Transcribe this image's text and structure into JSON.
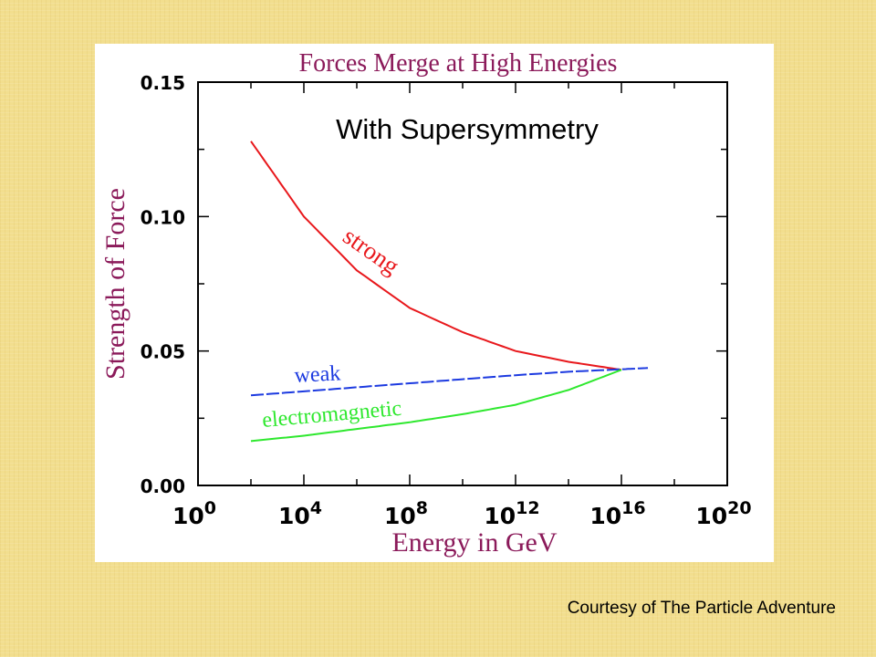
{
  "credit": "Courtesy of The Particle Adventure",
  "chart_data": {
    "type": "line",
    "title": "Forces Merge at High Energies",
    "subtitle": "With Supersymmetry",
    "xlabel": "Energy in GeV",
    "ylabel": "Strength of Force",
    "x_scale": "log",
    "x_ticks": [
      {
        "base": "10",
        "exp": "0"
      },
      {
        "base": "10",
        "exp": "4"
      },
      {
        "base": "10",
        "exp": "8"
      },
      {
        "base": "10",
        "exp": "12"
      },
      {
        "base": "10",
        "exp": "16"
      },
      {
        "base": "10",
        "exp": "20"
      }
    ],
    "y_ticks": [
      "0.00",
      "0.05",
      "0.10",
      "0.15"
    ],
    "xlim": [
      1,
      1e+20
    ],
    "ylim": [
      0,
      0.15
    ],
    "grid": false,
    "colors": {
      "title": "#8b1a5a",
      "axis_label": "#8b1a5a",
      "strong": "#e8181c",
      "weak": "#1c3ae0",
      "electromagnetic": "#2ee82e"
    },
    "series": [
      {
        "name": "strong",
        "x": [
          100,
          10000.0,
          1000000.0,
          100000000.0,
          10000000000.0,
          1000000000000.0,
          100000000000000.0,
          1e+16
        ],
        "values": [
          0.128,
          0.1,
          0.08,
          0.066,
          0.057,
          0.05,
          0.046,
          0.043
        ]
      },
      {
        "name": "weak",
        "x": [
          100,
          10000.0,
          1000000.0,
          100000000.0,
          10000000000.0,
          1000000000000.0,
          100000000000000.0,
          1e+16,
          1e+17
        ],
        "values": [
          0.0335,
          0.035,
          0.0365,
          0.038,
          0.0395,
          0.041,
          0.0423,
          0.0432,
          0.0437
        ]
      },
      {
        "name": "electromagnetic",
        "x": [
          100,
          10000.0,
          1000000.0,
          100000000.0,
          10000000000.0,
          1000000000000.0,
          100000000000000.0,
          1e+16
        ],
        "values": [
          0.0165,
          0.0185,
          0.021,
          0.0235,
          0.0265,
          0.03,
          0.0355,
          0.043
        ]
      }
    ]
  }
}
